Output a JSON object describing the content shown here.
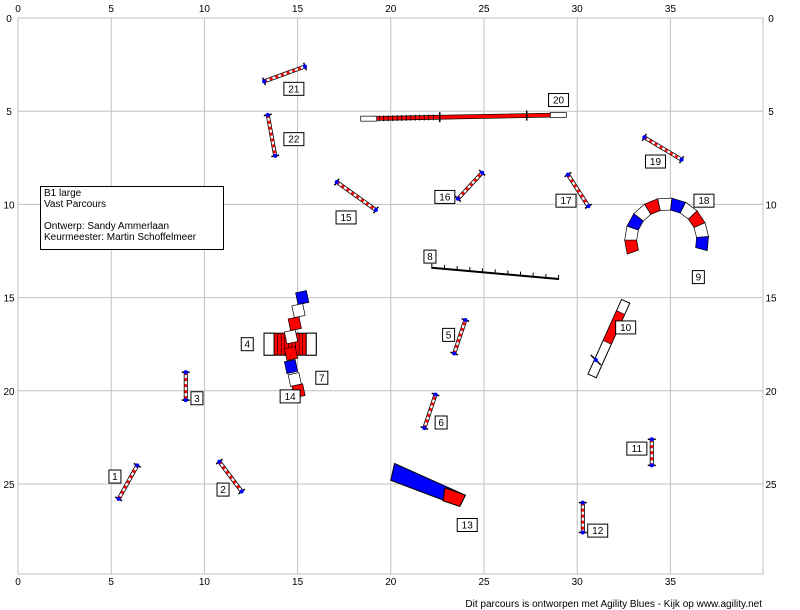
{
  "info": {
    "class": "B1 large",
    "course_type": "Vast Parcours",
    "designer": "Ontwerp: Sandy Ammerlaan",
    "judge": "Keurmeester: Martin Schoffelmeer"
  },
  "footer": "Dit parcours is ontworpen met Agility Blues - Kijk op www.agility.net",
  "axes": {
    "x_ticks": [
      "0",
      "5",
      "10",
      "15",
      "20",
      "25",
      "30",
      "35"
    ],
    "y_ticks": [
      "0",
      "5",
      "10",
      "15",
      "20",
      "25"
    ]
  },
  "colors": {
    "grid": "#c0c0c0",
    "jump_red": "#ff0000",
    "jump_blue": "#0000ff",
    "tunnel_red": "#ff0000",
    "tunnel_blue": "#0000ff",
    "line": "#000000"
  },
  "obstacles": [
    {
      "num": "1",
      "type": "jump",
      "x1": 5.4,
      "y1": 25.8,
      "x2": 6.4,
      "y2": 24.0,
      "lx": 5.2,
      "ly": 24.6
    },
    {
      "num": "2",
      "type": "jump",
      "x1": 10.8,
      "y1": 23.8,
      "x2": 12.0,
      "y2": 25.4,
      "lx": 11.0,
      "ly": 25.3
    },
    {
      "num": "3",
      "type": "jump",
      "x1": 9.0,
      "y1": 19.0,
      "x2": 9.0,
      "y2": 20.5,
      "lx": 9.6,
      "ly": 20.4
    },
    {
      "num": "4",
      "type": "tunnel-box",
      "x1": 13.2,
      "y1": 17.5,
      "x2": 16.0,
      "y2": 17.5,
      "lx": 12.3,
      "ly": 17.5
    },
    {
      "num": "5",
      "type": "jump",
      "x1": 23.4,
      "y1": 18.0,
      "x2": 24.0,
      "y2": 16.2,
      "lx": 23.1,
      "ly": 17.0
    },
    {
      "num": "6",
      "type": "jump",
      "x1": 21.8,
      "y1": 22.0,
      "x2": 22.4,
      "y2": 20.2,
      "lx": 22.7,
      "ly": 21.7
    },
    {
      "num": "7",
      "type": "tunnel-seg",
      "lx": 16.3,
      "ly": 19.3
    },
    {
      "num": "8",
      "type": "dogwalk",
      "x1": 22.2,
      "y1": 13.4,
      "x2": 29.0,
      "y2": 14.0,
      "lx": 22.1,
      "ly": 12.8
    },
    {
      "num": "9",
      "type": "tunnel-seg",
      "lx": 36.5,
      "ly": 13.9
    },
    {
      "num": "10",
      "type": "tunnel-straight",
      "x1": 30.8,
      "y1": 19.2,
      "x2": 32.6,
      "y2": 15.2,
      "lx": 32.6,
      "ly": 16.6
    },
    {
      "num": "11",
      "type": "jump",
      "x1": 34.0,
      "y1": 22.6,
      "x2": 34.0,
      "y2": 24.0,
      "lx": 33.2,
      "ly": 23.1
    },
    {
      "num": "12",
      "type": "jump",
      "x1": 30.3,
      "y1": 26.0,
      "x2": 30.3,
      "y2": 27.6,
      "lx": 31.1,
      "ly": 27.5
    },
    {
      "num": "13",
      "type": "tunnel-funnel",
      "x1": 20.4,
      "y1": 24.3,
      "x2": 23.3,
      "y2": 26.0,
      "lx": 24.1,
      "ly": 27.2
    },
    {
      "num": "14",
      "type": "label-only",
      "lx": 14.6,
      "ly": 20.3
    },
    {
      "num": "15",
      "type": "jump",
      "x1": 17.1,
      "y1": 8.8,
      "x2": 19.2,
      "y2": 10.3,
      "lx": 17.6,
      "ly": 10.7
    },
    {
      "num": "16",
      "type": "jump",
      "x1": 23.6,
      "y1": 9.7,
      "x2": 24.9,
      "y2": 8.3,
      "lx": 22.9,
      "ly": 9.6
    },
    {
      "num": "17",
      "type": "jump",
      "x1": 29.5,
      "y1": 8.4,
      "x2": 30.6,
      "y2": 10.1,
      "lx": 29.4,
      "ly": 9.8
    },
    {
      "num": "18",
      "type": "label-only",
      "lx": 36.8,
      "ly": 9.8
    },
    {
      "num": "19",
      "type": "jump",
      "x1": 33.6,
      "y1": 6.4,
      "x2": 35.6,
      "y2": 7.6,
      "lx": 34.2,
      "ly": 7.7
    },
    {
      "num": "20",
      "type": "dogwalk-red",
      "x1": 18.6,
      "y1": 5.4,
      "x2": 29.2,
      "y2": 5.2,
      "lx": 29.0,
      "ly": 4.4
    },
    {
      "num": "21",
      "type": "jump",
      "x1": 13.2,
      "y1": 3.4,
      "x2": 15.4,
      "y2": 2.6,
      "lx": 14.8,
      "ly": 3.8
    },
    {
      "num": "22",
      "type": "jump",
      "x1": 13.4,
      "y1": 5.2,
      "x2": 13.8,
      "y2": 7.4,
      "lx": 14.8,
      "ly": 6.5
    }
  ]
}
